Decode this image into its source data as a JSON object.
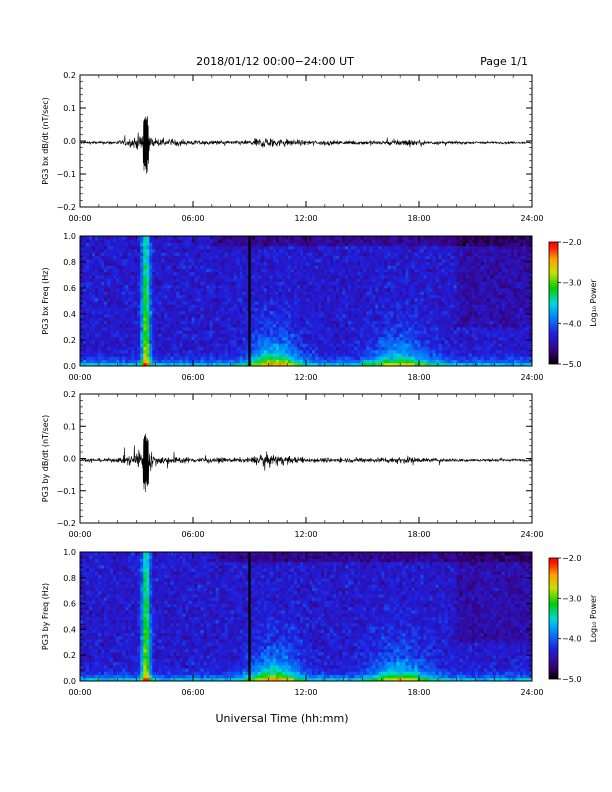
{
  "header": {
    "title": "2018/01/12  00:00−24:00 UT",
    "page": "Page 1/1"
  },
  "chart_data": [
    {
      "type": "line",
      "ylabel": "PG3 bx dB/dt (nT/sec)",
      "ylim": [
        -0.2,
        0.2
      ],
      "yticks": [
        "0.2",
        "0.1",
        "0.0",
        "−0.1",
        "−0.2"
      ],
      "yvalues": [
        0.2,
        0.1,
        0.0,
        -0.1,
        -0.2
      ],
      "xlim": [
        0,
        24
      ],
      "xticks": [
        "00:00",
        "06:00",
        "12:00",
        "18:00",
        "24:00"
      ],
      "xvalues": [
        0,
        6,
        12,
        18,
        24
      ],
      "envelope_hours": [
        0,
        1,
        2,
        2.8,
        3.3,
        3.5,
        3.7,
        4,
        5,
        6,
        7,
        8,
        9,
        9.5,
        10,
        10.5,
        11,
        12,
        13,
        14,
        15,
        16,
        17,
        17.5,
        18,
        19,
        20,
        21,
        22,
        24
      ],
      "envelope_amp": [
        0.006,
        0.008,
        0.01,
        0.025,
        0.06,
        0.1,
        0.05,
        0.02,
        0.018,
        0.012,
        0.012,
        0.01,
        0.012,
        0.025,
        0.03,
        0.025,
        0.02,
        0.012,
        0.012,
        0.01,
        0.012,
        0.014,
        0.018,
        0.02,
        0.012,
        0.01,
        0.008,
        0.007,
        0.006,
        0.005
      ]
    },
    {
      "type": "heatmap",
      "ylabel": "PG3 bx Freq (Hz)",
      "ylim": [
        0,
        1
      ],
      "yticks": [
        "1.0",
        "0.8",
        "0.6",
        "0.4",
        "0.2",
        "0.0"
      ],
      "yvalues": [
        1.0,
        0.8,
        0.6,
        0.4,
        0.2,
        0.0
      ],
      "xlim": [
        0,
        24
      ],
      "xticks": [
        "00:00",
        "06:00",
        "12:00",
        "18:00",
        "24:00"
      ],
      "xvalues": [
        0,
        6,
        12,
        18,
        24
      ],
      "colorbar": {
        "label": "Log₁₀ Power",
        "range": [
          -5.0,
          -2.0
        ],
        "ticks": [
          "−2.0",
          "−3.0",
          "−4.0",
          "−5.0"
        ],
        "tickvalues": [
          -2.0,
          -3.0,
          -4.0,
          -5.0
        ],
        "colors": [
          "#000000",
          "#3a0078",
          "#2020e0",
          "#0090ff",
          "#00d8d8",
          "#00d000",
          "#c8e000",
          "#ffa000",
          "#ff2000",
          "#ff0000"
        ]
      },
      "gap_hour": 9.0
    },
    {
      "type": "line",
      "ylabel": "PG3 by dB/dt (nT/sec)",
      "ylim": [
        -0.2,
        0.2
      ],
      "yticks": [
        "0.2",
        "0.1",
        "0.0",
        "−0.1",
        "−0.2"
      ],
      "yvalues": [
        0.2,
        0.1,
        0.0,
        -0.1,
        -0.2
      ],
      "xlim": [
        0,
        24
      ],
      "xticks": [
        "00:00",
        "06:00",
        "12:00",
        "18:00",
        "24:00"
      ],
      "xvalues": [
        0,
        6,
        12,
        18,
        24
      ],
      "envelope_hours": [
        0,
        1,
        2,
        2.8,
        3.3,
        3.5,
        3.7,
        4,
        5,
        6,
        7,
        8,
        9,
        9.5,
        10,
        10.5,
        11,
        12,
        13,
        14,
        15,
        16,
        17,
        17.5,
        18,
        19,
        20,
        21,
        22,
        24
      ],
      "envelope_amp": [
        0.007,
        0.01,
        0.012,
        0.035,
        0.07,
        0.1,
        0.06,
        0.025,
        0.02,
        0.014,
        0.014,
        0.012,
        0.014,
        0.03,
        0.035,
        0.028,
        0.022,
        0.014,
        0.013,
        0.012,
        0.013,
        0.015,
        0.018,
        0.02,
        0.013,
        0.011,
        0.009,
        0.008,
        0.007,
        0.006
      ]
    },
    {
      "type": "heatmap",
      "ylabel": "PG3 by Freq (Hz)",
      "ylim": [
        0,
        1
      ],
      "yticks": [
        "1.0",
        "0.8",
        "0.6",
        "0.4",
        "0.2",
        "0.0"
      ],
      "yvalues": [
        1.0,
        0.8,
        0.6,
        0.4,
        0.2,
        0.0
      ],
      "xlim": [
        0,
        24
      ],
      "xticks": [
        "00:00",
        "06:00",
        "12:00",
        "18:00",
        "24:00"
      ],
      "xvalues": [
        0,
        6,
        12,
        18,
        24
      ],
      "colorbar": {
        "label": "Log₁₀ Power",
        "range": [
          -5.0,
          -2.0
        ],
        "ticks": [
          "−2.0",
          "−3.0",
          "−4.0",
          "−5.0"
        ],
        "tickvalues": [
          -2.0,
          -3.0,
          -4.0,
          -5.0
        ],
        "colors": [
          "#000000",
          "#3a0078",
          "#2020e0",
          "#0090ff",
          "#00d8d8",
          "#00d000",
          "#c8e000",
          "#ffa000",
          "#ff2000",
          "#ff0000"
        ]
      },
      "gap_hour": 9.0
    }
  ],
  "footer": {
    "xlabel": "Universal Time (hh:mm)"
  }
}
